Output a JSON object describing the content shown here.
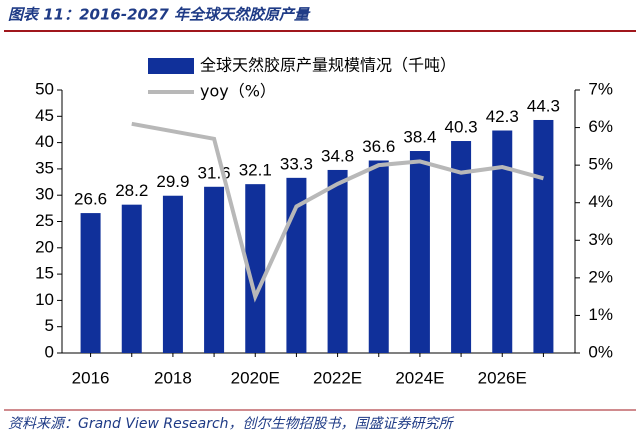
{
  "chart_data": {
    "type": "bar",
    "title": "图表 11：2016-2027 年全球天然胶原产量",
    "source": "资料来源：Grand View Research，创尔生物招股书，国盛证券研究所",
    "categories": [
      "2016",
      null,
      "2018",
      null,
      "2020E",
      null,
      "2022E",
      null,
      "2024E",
      null,
      "2026E",
      null
    ],
    "series": [
      {
        "name": "全球天然胶原产量规模情况（千吨）",
        "color": "#10309a",
        "type": "bar",
        "values": [
          26.6,
          28.2,
          29.9,
          31.6,
          32.1,
          33.3,
          34.8,
          36.6,
          38.4,
          40.3,
          42.3,
          44.3
        ]
      },
      {
        "name": "yoy（%）",
        "color": "#b8b8b8",
        "type": "line",
        "axis": "y2",
        "values": [
          null,
          6.1,
          5.9,
          5.7,
          1.5,
          3.9,
          4.5,
          5.0,
          5.1,
          4.8,
          4.95,
          4.65
        ]
      }
    ],
    "ylim": [
      0,
      50
    ],
    "yticks": [
      0,
      5,
      10,
      15,
      20,
      25,
      30,
      35,
      40,
      45,
      50
    ],
    "y2lim": [
      0,
      7
    ],
    "y2ticks": [
      {
        "value": 0,
        "label": "0%"
      },
      {
        "value": 1,
        "label": "1%"
      },
      {
        "value": 2,
        "label": "2%"
      },
      {
        "value": 3,
        "label": "3%"
      },
      {
        "value": 4,
        "label": "4%"
      },
      {
        "value": 5,
        "label": "5%"
      },
      {
        "value": 6,
        "label": "6%"
      },
      {
        "value": 7,
        "label": "7%"
      }
    ],
    "grid": false
  }
}
